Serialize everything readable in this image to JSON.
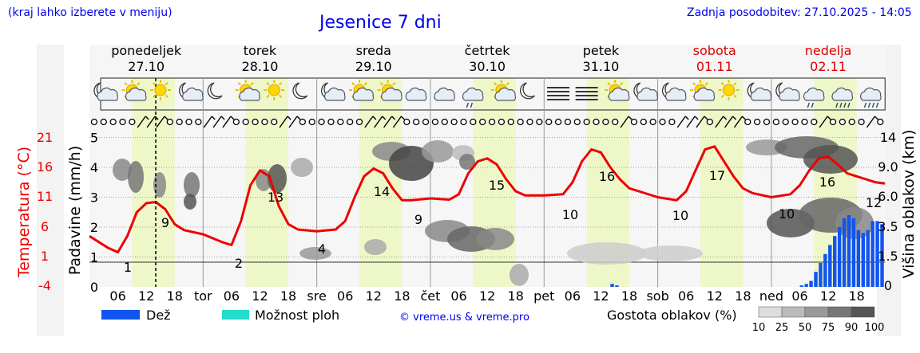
{
  "header": {
    "left_note": "(kraj lahko izberete v meniju)",
    "title": "Jesenice 7 dni",
    "updated": "Zadnja posodobitev: 27.10.2025 - 14:05"
  },
  "days": [
    {
      "name": "ponedeljek",
      "date": "27.10",
      "weekend": false,
      "short": ""
    },
    {
      "name": "torek",
      "date": "28.10",
      "weekend": false,
      "short": "tor"
    },
    {
      "name": "sreda",
      "date": "29.10",
      "weekend": false,
      "short": "sre"
    },
    {
      "name": "četrtek",
      "date": "30.10",
      "weekend": false,
      "short": "čet"
    },
    {
      "name": "petek",
      "date": "31.10",
      "weekend": false,
      "short": "pet"
    },
    {
      "name": "sobota",
      "date": "01.11",
      "weekend": true,
      "short": "sob"
    },
    {
      "name": "nedelja",
      "date": "02.11",
      "weekend": true,
      "short": "ned"
    }
  ],
  "hour_ticks": [
    "06",
    "12",
    "18"
  ],
  "weather_icons": [
    [
      "moon-cloud",
      "sun-cloud",
      "sun",
      "moon-cloud"
    ],
    [
      "moon",
      "sun-cloud",
      "sun",
      "moon"
    ],
    [
      "moon-cloud",
      "sun-cloud",
      "sun-cloud",
      "cloud"
    ],
    [
      "cloud",
      "cloud-drizzle",
      "sun-cloud",
      "moon"
    ],
    [
      "fog",
      "fog",
      "sun-cloud",
      "moon-cloud"
    ],
    [
      "moon-cloud",
      "sun-cloud",
      "sun",
      "moon-cloud"
    ],
    [
      "moon-cloud",
      "cloud-drizzle",
      "cloud-rain",
      "cloud-rain"
    ]
  ],
  "wind_symbols": [
    [
      "calm",
      "calm",
      "calm",
      "calm",
      "calm",
      "wind",
      "wind",
      "wind",
      "calm",
      "calm",
      "calm",
      "calm"
    ],
    [
      "wind",
      "wind",
      "wind",
      "calm",
      "calm",
      "calm",
      "calm",
      "calm",
      "wind",
      "wind",
      "calm",
      "calm"
    ],
    [
      "calm",
      "calm",
      "calm",
      "calm",
      "calm",
      "wind",
      "wind",
      "wind",
      "wind",
      "calm",
      "calm",
      "calm"
    ],
    [
      "calm",
      "calm",
      "calm",
      "calm",
      "calm",
      "calm",
      "calm",
      "calm",
      "calm",
      "calm",
      "calm",
      "calm"
    ],
    [
      "calm",
      "calm",
      "calm",
      "calm",
      "calm",
      "calm",
      "calm",
      "calm",
      "wind",
      "calm",
      "calm",
      "calm"
    ],
    [
      "calm",
      "calm",
      "wind",
      "wind",
      "wind",
      "calm",
      "wind",
      "wind",
      "wind",
      "calm",
      "calm",
      "calm"
    ],
    [
      "calm",
      "calm",
      "calm",
      "calm",
      "calm",
      "wind",
      "calm",
      "calm",
      "calm",
      "calm",
      "wind",
      "calm"
    ]
  ],
  "left_axes": {
    "temperature_label": "Temperatura (°C)",
    "temperature_ticks": [
      "21",
      "16",
      "11",
      "6",
      "1",
      "-4"
    ],
    "precip_label": "Padavine (mm/h)",
    "precip_ticks": [
      "5",
      "4",
      "3",
      "2",
      "1",
      "0"
    ]
  },
  "right_axis": {
    "label": "Višina oblakov (km)",
    "ticks": [
      "14",
      "9.0",
      "6.0",
      "3.5",
      "1.5",
      "0"
    ]
  },
  "temperature_labels": [
    {
      "text": "1"
    },
    {
      "text": "9"
    },
    {
      "text": "2"
    },
    {
      "text": "13"
    },
    {
      "text": "4"
    },
    {
      "text": "14"
    },
    {
      "text": "9"
    },
    {
      "text": "15"
    },
    {
      "text": "10"
    },
    {
      "text": "16"
    },
    {
      "text": "10"
    },
    {
      "text": "17"
    },
    {
      "text": "10"
    },
    {
      "text": "16"
    },
    {
      "text": "12"
    }
  ],
  "legend": {
    "rain": "Dež",
    "shower": "Možnost ploh",
    "copyright": "© vreme.us & vreme.pro",
    "cloud_density": "Gostota oblakov (%)",
    "density_ticks": [
      "10",
      "25",
      "50",
      "75",
      "90",
      "100"
    ]
  },
  "colors": {
    "temperature_line": "#ee0000",
    "rain": "#1155ee",
    "shower": "#22ddcc",
    "daylight": "#eef7c8",
    "weekend": "#dd0000",
    "link": "#0000ee"
  },
  "chart_data": {
    "type": "line",
    "x_unit": "hours since 27.10 00:00",
    "x_range": [
      0,
      168
    ],
    "now_marker_hour": 14,
    "temperature": {
      "name": "Temperatura (°C)",
      "y_range": [
        -4,
        21
      ],
      "x": [
        0,
        4,
        6,
        8,
        10,
        12,
        14,
        16,
        18,
        20,
        24,
        28,
        30,
        32,
        34,
        36,
        38,
        40,
        42,
        44,
        48,
        52,
        54,
        56,
        58,
        60,
        62,
        64,
        66,
        68,
        72,
        76,
        78,
        80,
        82,
        84,
        86,
        88,
        90,
        92,
        96,
        100,
        102,
        104,
        106,
        108,
        110,
        112,
        114,
        116,
        120,
        124,
        126,
        128,
        130,
        132,
        134,
        136,
        138,
        140,
        144,
        148,
        150,
        152,
        154,
        156,
        158,
        160,
        162,
        164,
        166,
        168
      ],
      "values": [
        3.5,
        1.5,
        0.8,
        3.5,
        7.5,
        9,
        9.2,
        8,
        5.5,
        4.5,
        3.8,
        2.5,
        2,
        6,
        12,
        14.5,
        13.5,
        8.5,
        5.5,
        4.6,
        4.3,
        4.6,
        6,
        10,
        13.5,
        14.8,
        14,
        11.5,
        9.5,
        9.5,
        9.8,
        9.6,
        10.5,
        14,
        16,
        16.5,
        15.5,
        13,
        11,
        10.3,
        10.3,
        10.5,
        12.5,
        16,
        18,
        17.5,
        15,
        13,
        11.5,
        11,
        10,
        9.5,
        11,
        14.5,
        18,
        18.5,
        16,
        13.5,
        11.5,
        10.7,
        10,
        10.5,
        12,
        14.5,
        16.5,
        16.8,
        15.5,
        14,
        13.5,
        13,
        12.5,
        12.3
      ]
    },
    "precipitation": {
      "name": "Dež",
      "y_range": [
        0,
        5
      ],
      "x": [
        110.0,
        111.0,
        150.0,
        151.0,
        152.0,
        153.0,
        154.0,
        155.0,
        156.0,
        157.0,
        158.0,
        159.0,
        160.0,
        161.0,
        162.0,
        163.0,
        164.0,
        165.0,
        166.0,
        167.0
      ],
      "values": [
        0.1,
        0.05,
        0.05,
        0.1,
        0.2,
        0.5,
        0.8,
        1.1,
        1.4,
        1.7,
        2.0,
        2.3,
        2.4,
        2.3,
        1.9,
        1.8,
        1.9,
        2.2,
        2.2,
        2.1
      ]
    },
    "cloud_height_axis": {
      "unit": "km",
      "ticks": [
        0,
        1.5,
        3.5,
        6.0,
        9.0,
        14
      ]
    }
  }
}
